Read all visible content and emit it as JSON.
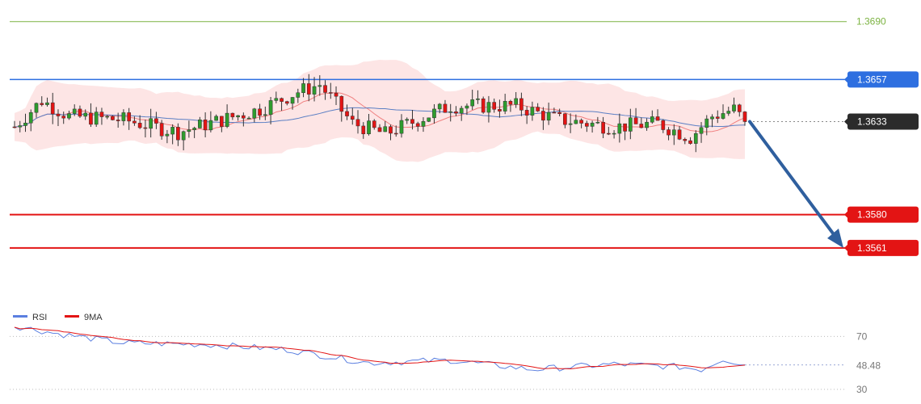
{
  "chart_data": [
    {
      "type": "candlestick",
      "ylim": [
        1.3525,
        1.37
      ],
      "levels": [
        {
          "value": 1.369,
          "label": "1.3690",
          "color": "#7cb342",
          "style": "thin",
          "tag": "text"
        },
        {
          "value": 1.3657,
          "label": "1.3657",
          "color": "#2e6fe0",
          "style": "medium",
          "tag": "box"
        },
        {
          "value": 1.3633,
          "label": "1.3633",
          "color": "#555555",
          "style": "dotted",
          "tag": "box",
          "tag_color": "#2b2b2b"
        },
        {
          "value": 1.358,
          "label": "1.3580",
          "color": "#e31414",
          "style": "thick",
          "tag": "box"
        },
        {
          "value": 1.3561,
          "label": "1.3561",
          "color": "#e31414",
          "style": "thick",
          "tag": "box"
        }
      ],
      "candle_count": 135,
      "start_close": 1.363,
      "last_close": 1.3633,
      "swing_high": 1.3665,
      "swing_low": 1.3618,
      "bull_color": "#2e9c2e",
      "bear_color": "#e31414",
      "bollinger_fill": "#fde0e0",
      "ma_fast_color": "#f08080",
      "ma_slow_color": "#5b7fc4",
      "forecast_arrow": {
        "from": 1.3633,
        "to": 1.3561,
        "color": "#2f5f9e"
      }
    },
    {
      "type": "line",
      "legend": [
        {
          "name": "RSI",
          "color": "#5b7fe0"
        },
        {
          "name": "9MA",
          "color": "#e31414"
        }
      ],
      "ylim": [
        25,
        80
      ],
      "ticks": [
        "70",
        "30"
      ],
      "last_value_label": "48.48",
      "last_value": 48.48,
      "start_value": 78
    }
  ]
}
